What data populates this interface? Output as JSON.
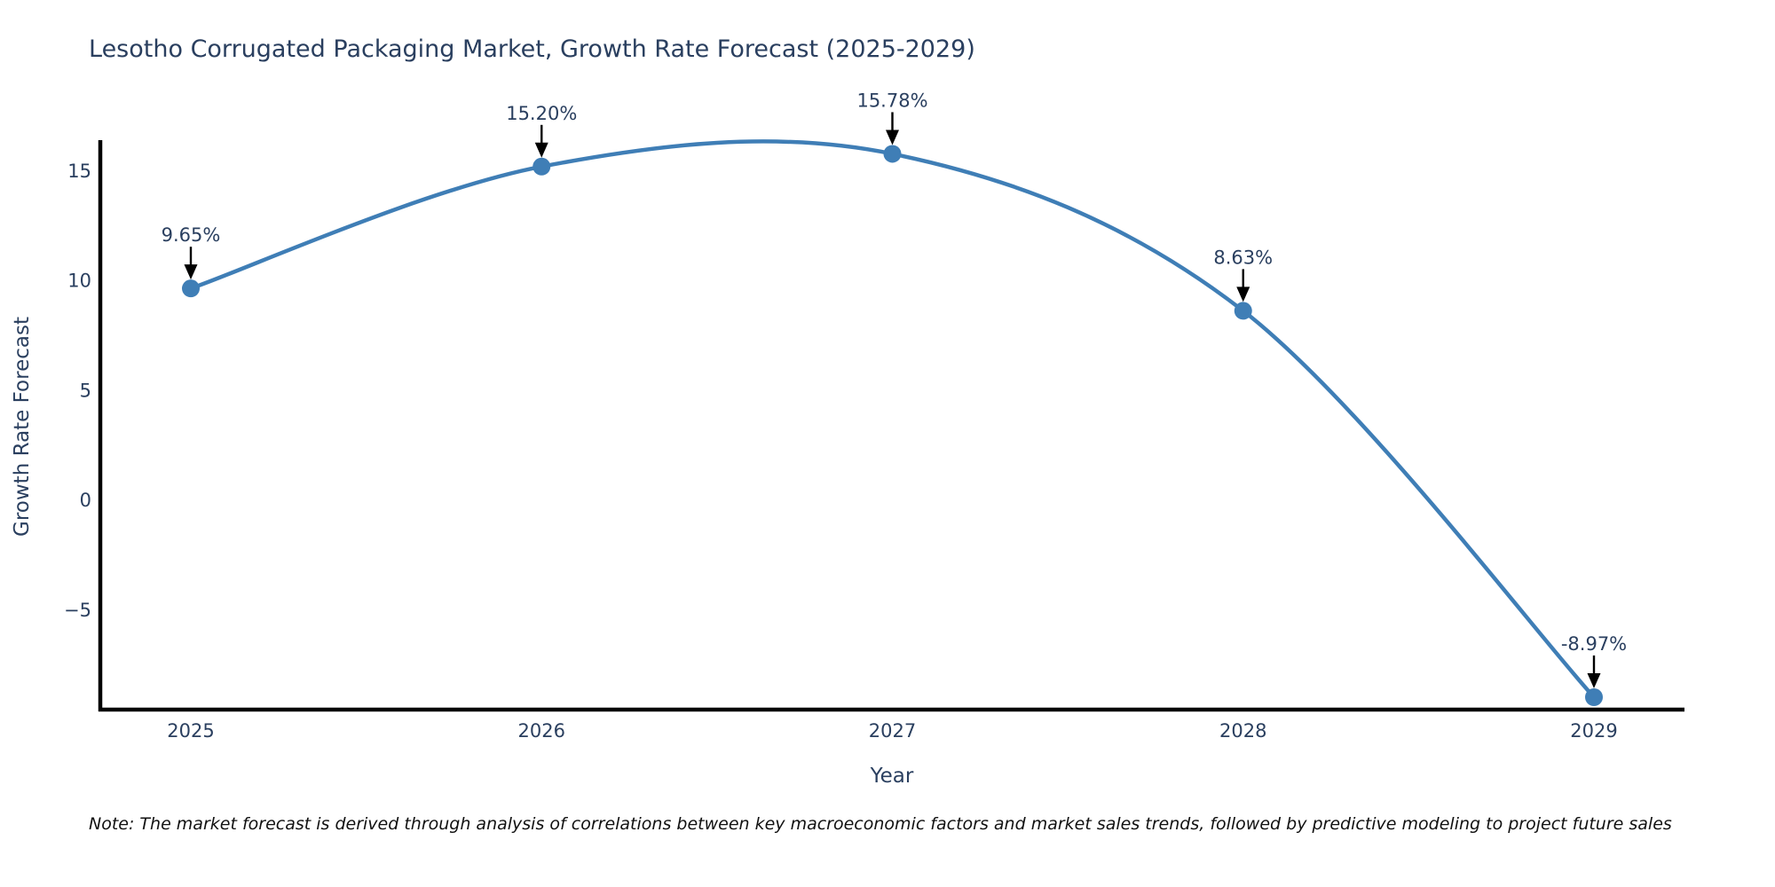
{
  "title": "Lesotho Corrugated Packaging Market, Growth Rate Forecast (2025-2029)",
  "note": "Note: The market forecast is derived through analysis of correlations between key macroeconomic factors and market sales trends, followed by predictive modeling to project future sales",
  "chart_data": {
    "type": "line",
    "line_shape": "spline",
    "title": "Lesotho Corrugated Packaging Market, Growth Rate Forecast (2025-2029)",
    "xlabel": "Year",
    "ylabel": "Growth Rate Forecast",
    "x": [
      2025,
      2026,
      2027,
      2028,
      2029
    ],
    "values": [
      9.65,
      15.2,
      15.78,
      8.63,
      -8.97
    ],
    "point_labels": [
      "9.65%",
      "15.20%",
      "15.78%",
      "8.63%",
      "-8.97%"
    ],
    "xtick_labels": [
      "2025",
      "2026",
      "2027",
      "2028",
      "2029"
    ],
    "ytick_values": [
      15,
      10,
      5,
      0,
      -5
    ],
    "ytick_labels": [
      "15",
      "10",
      "5",
      "0",
      "−5"
    ],
    "xlim": [
      2024.74,
      2029.26
    ],
    "ylim": [
      -9.5,
      16.4
    ],
    "grid": false,
    "legend": "none",
    "colors": {
      "line": "#3f7eb6",
      "marker": "#3f7eb6",
      "axis": "#000000",
      "tick_text": "#2a3f5f",
      "annotation_text": "#2a3f5f",
      "annotation_arrow": "#000000",
      "title_text": "#2a3f5f",
      "background": "#ffffff"
    }
  }
}
